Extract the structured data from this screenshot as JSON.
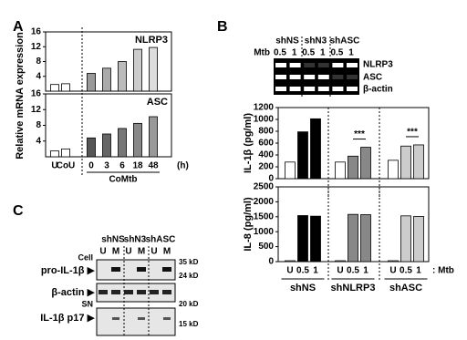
{
  "panel_letters": [
    "A",
    "B",
    "C"
  ],
  "chart_data": [
    {
      "type": "bar",
      "title": "NLRP3",
      "ylabel": "Relative mRNA expression",
      "values": [
        1.8,
        2.0,
        4.8,
        6.2,
        8.0,
        11.3,
        11.8
      ],
      "colors": [
        "#ffffff",
        "#ffffff",
        "#999999",
        "#aaaaaa",
        "#bbbbbb",
        "#cccccc",
        "#dddddd"
      ],
      "ylim": [
        0,
        16
      ],
      "yticks": [
        4,
        8,
        12,
        16
      ]
    },
    {
      "type": "bar",
      "title": "ASC",
      "categories": [
        "U",
        "CoU",
        "0",
        "3",
        "6",
        "18",
        "48"
      ],
      "xlabel": "CoMtb",
      "x_unit": "(h)",
      "values": [
        1.5,
        2.0,
        4.8,
        5.8,
        7.2,
        8.5,
        10.2
      ],
      "colors": [
        "#ffffff",
        "#ffffff",
        "#555555",
        "#666666",
        "#777777",
        "#888888",
        "#999999"
      ],
      "ylim": [
        0,
        16
      ],
      "yticks": [
        4,
        8,
        12,
        16
      ]
    },
    {
      "type": "bar",
      "ylabel": "IL-1β (pg/ml)",
      "values": [
        280,
        790,
        1010,
        280,
        380,
        530,
        310,
        550,
        570
      ],
      "colors": [
        "#ffffff",
        "#000000",
        "#000000",
        "#ffffff",
        "#888888",
        "#888888",
        "#ffffff",
        "#cccccc",
        "#cccccc"
      ],
      "annotations": [
        "***",
        "***"
      ],
      "ylim": [
        0,
        1200
      ],
      "yticks": [
        0,
        200,
        400,
        600,
        800,
        1000,
        1200
      ]
    },
    {
      "type": "bar",
      "ylabel": "IL-8 (pg/ml)",
      "categories": [
        "U",
        "0.5",
        "1",
        "U",
        "0.5",
        "1",
        "U",
        "0.5",
        "1"
      ],
      "groups": [
        "shNS",
        "shNLRP3",
        "shASC"
      ],
      "x_unit": ": Mtb",
      "values": [
        30,
        1540,
        1520,
        30,
        1580,
        1570,
        30,
        1530,
        1510
      ],
      "colors": [
        "#ffffff",
        "#000000",
        "#000000",
        "#ffffff",
        "#888888",
        "#888888",
        "#ffffff",
        "#cccccc",
        "#cccccc"
      ],
      "ylim": [
        0,
        2500
      ],
      "yticks": [
        0,
        500,
        1000,
        1500,
        2000,
        2500
      ]
    }
  ],
  "blot_b": {
    "groups": [
      "shNS",
      "shN3",
      "shASC"
    ],
    "treatment_label": "Mtb",
    "lanes": [
      "0.5",
      "1",
      "0.5",
      "1",
      "0.5",
      "1"
    ],
    "rows": [
      "NLRP3",
      "ASC",
      "β-actin"
    ]
  },
  "blot_c": {
    "groups": [
      "shNS",
      "shN3",
      "shASC"
    ],
    "lanes": [
      "U",
      "M",
      "U",
      "M",
      "U",
      "M"
    ],
    "fractions": [
      "Cell",
      "SN"
    ],
    "rows": [
      "pro-IL-1β ▶",
      "β-actin ▶",
      "IL-1β p17 ▶"
    ],
    "markers": [
      "35 kD",
      "24 kD",
      "20 kD",
      "15 kD"
    ]
  }
}
